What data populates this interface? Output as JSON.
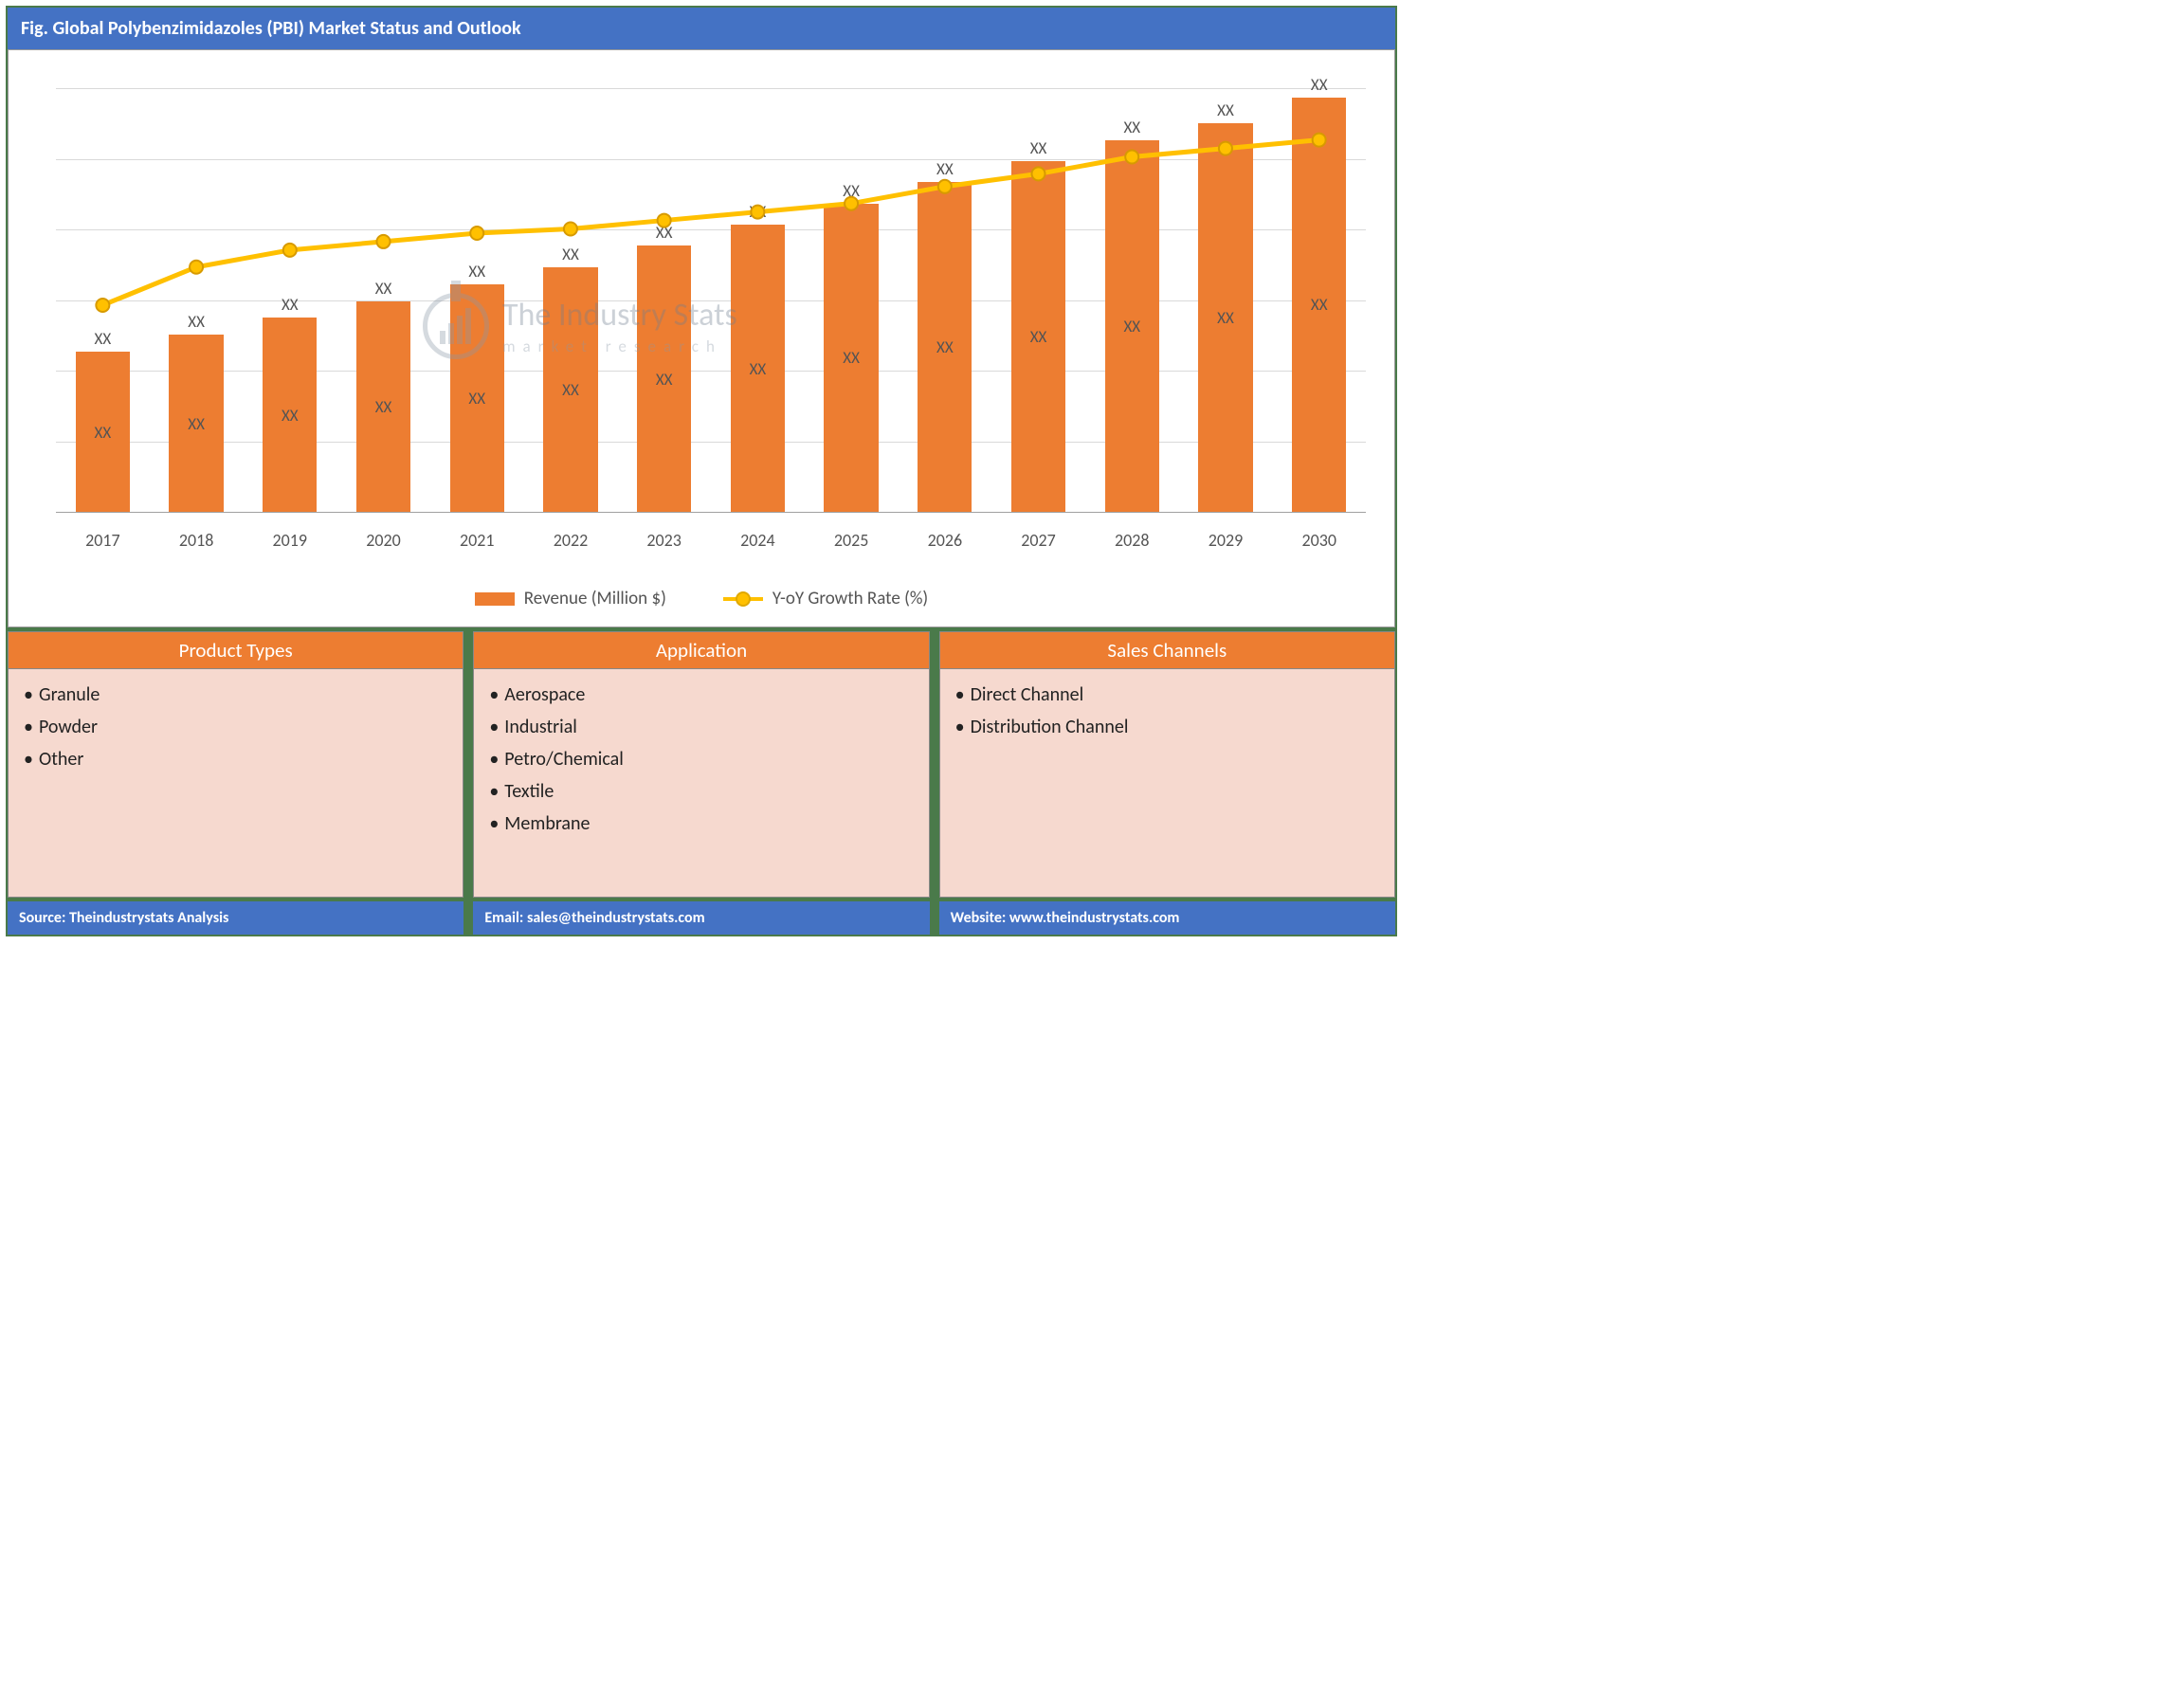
{
  "title": "Fig. Global Polybenzimidazoles (PBI) Market Status and Outlook",
  "chart": {
    "type": "bar+line",
    "categories": [
      "2017",
      "2018",
      "2019",
      "2020",
      "2021",
      "2022",
      "2023",
      "2024",
      "2025",
      "2026",
      "2027",
      "2028",
      "2029",
      "2030"
    ],
    "bar_series": {
      "name": "Revenue (Million $)",
      "color": "#ed7d31",
      "values_pct_of_max": [
        38,
        42,
        46,
        50,
        54,
        58,
        63,
        68,
        73,
        78,
        83,
        88,
        92,
        98
      ],
      "inner_labels": [
        "XX",
        "XX",
        "XX",
        "XX",
        "XX",
        "XX",
        "XX",
        "XX",
        "XX",
        "XX",
        "XX",
        "XX",
        "XX",
        "XX"
      ],
      "top_labels": [
        "XX",
        "XX",
        "XX",
        "XX",
        "XX",
        "XX",
        "XX",
        "XX",
        "XX",
        "XX",
        "XX",
        "XX",
        "XX",
        "XX"
      ]
    },
    "line_series": {
      "name": "Y-oY Growth Rate (%)",
      "color": "#ffc000",
      "marker_color": "#ffc000",
      "marker_border": "#d79a00",
      "values_pct_of_max": [
        49,
        58,
        62,
        64,
        66,
        67,
        69,
        71,
        73,
        77,
        80,
        84,
        86,
        88
      ]
    },
    "ylim": [
      0,
      100
    ],
    "gridlines_pct": [
      0,
      16.67,
      33.33,
      50,
      66.67,
      83.33,
      100
    ],
    "grid_color": "#d9d9d9",
    "background_color": "#ffffff",
    "axis_line_color": "#a0a0a0",
    "tick_font_size": 18,
    "data_label_font_size": 17,
    "legend": {
      "items": [
        "Revenue (Million $)",
        "Y-oY Growth Rate (%)"
      ],
      "font_size": 19
    }
  },
  "watermark": {
    "line1": "The Industry Stats",
    "line2": "market research"
  },
  "cards": [
    {
      "title": "Product Types",
      "items": [
        "Granule",
        "Powder",
        "Other"
      ]
    },
    {
      "title": "Application",
      "items": [
        "Aerospace",
        "Industrial",
        "Petro/Chemical",
        "Textile",
        "Membrane"
      ]
    },
    {
      "title": "Sales Channels",
      "items": [
        "Direct Channel",
        "Distribution Channel"
      ]
    }
  ],
  "footer": {
    "source": "Source: Theindustrystats Analysis",
    "email": "Email: sales@theindustrystats.com",
    "website": "Website: www.theindustrystats.com"
  },
  "colors": {
    "header_blue": "#4472c4",
    "frame_green": "#4a7a4a",
    "accent_orange": "#ed7d31",
    "card_bg": "#f6d9cf",
    "line_yellow": "#ffc000"
  }
}
